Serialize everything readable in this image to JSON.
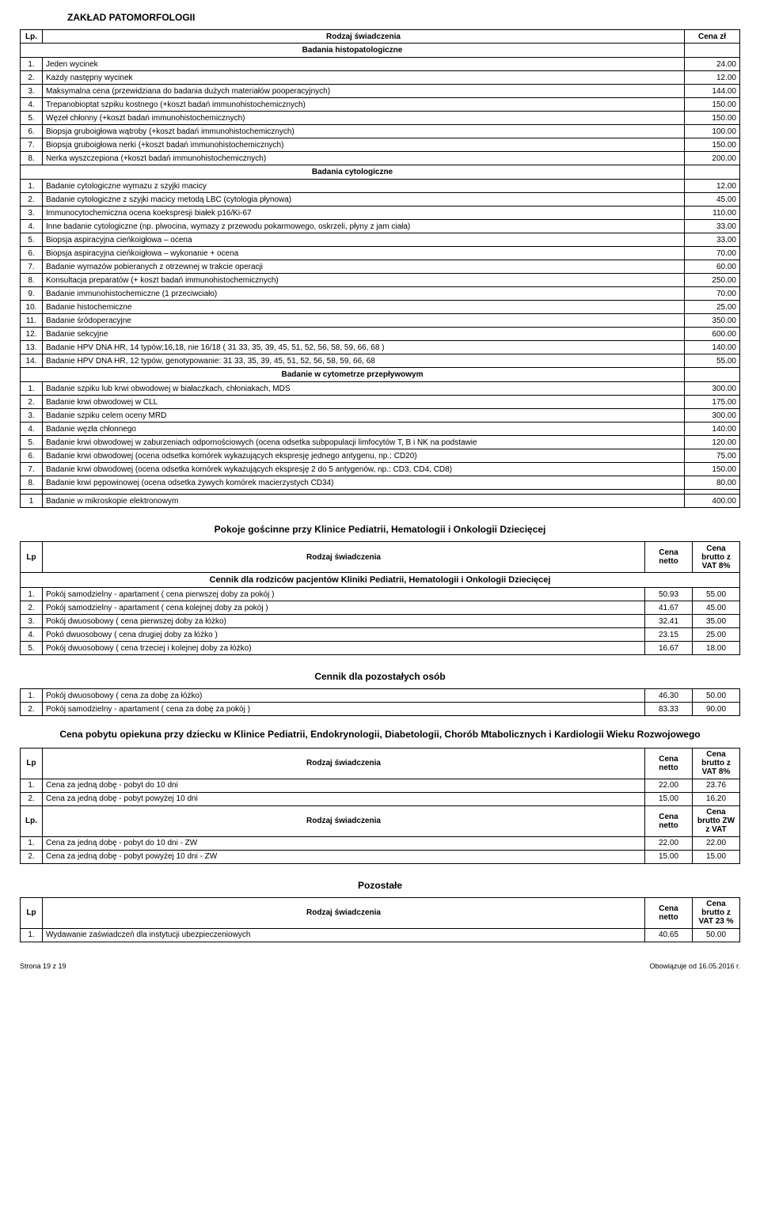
{
  "title1": "ZAKŁAD PATOMORFOLOGII",
  "hdr": {
    "lp": "Lp.",
    "lp2": "Lp",
    "rodzaj": "Rodzaj świadczenia",
    "cena": "Cena zł",
    "netto": "Cena netto",
    "brutto8": "Cena brutto z VAT 8%",
    "bruttoZW": "Cena brutto ZW z VAT",
    "brutto23": "Cena brutto z VAT 23 %"
  },
  "sec1": "Badania histopatologiczne",
  "t1": [
    {
      "n": "1.",
      "d": "Jeden wycinek",
      "p": "24.00"
    },
    {
      "n": "2.",
      "d": "Każdy następny wycinek",
      "p": "12.00"
    },
    {
      "n": "3.",
      "d": "Maksymalna cena (przewidziana do badania dużych materiałów pooperacyjnych)",
      "p": "144.00"
    },
    {
      "n": "4.",
      "d": "Trepanobioptat szpiku kostnego (+koszt badań immunohistochemicznych)",
      "p": "150.00"
    },
    {
      "n": "5.",
      "d": "Węzeł chłonny (+koszt badań immunohistochemicznych)",
      "p": "150.00"
    },
    {
      "n": "6.",
      "d": "Biopsja gruboigłowa wątroby (+koszt badań immunohistochemicznych)",
      "p": "100.00"
    },
    {
      "n": "7.",
      "d": "Biopsja gruboigłowa nerki (+koszt badań immunohistochemicznych)",
      "p": "150.00"
    },
    {
      "n": "8.",
      "d": "Nerka wyszczepiona (+koszt badań immunohistochemicznych)",
      "p": "200.00"
    }
  ],
  "sec2": "Badania cytologiczne",
  "t2": [
    {
      "n": "1.",
      "d": "Badanie cytologiczne wymazu z szyjki macicy",
      "p": "12.00"
    },
    {
      "n": "2.",
      "d": "Badanie cytologiczne z szyjki macicy metodą LBC (cytologia płynowa)",
      "p": "45.00"
    },
    {
      "n": "3.",
      "d": "Immunocytochemiczna ocena koekspresji białek p16/Ki-67",
      "p": "110.00"
    },
    {
      "n": "4.",
      "d": "Inne badanie cytologiczne (np. plwocina, wymazy z przewodu pokarmowego, oskrzeli, płyny z jam ciała)",
      "p": "33.00"
    },
    {
      "n": "5.",
      "d": "Biopsja aspiracyjna cieńkoigłowa – ocena",
      "p": "33.00"
    },
    {
      "n": "6.",
      "d": "Biopsja aspiracyjna cieńkoigłowa – wykonanie + ocena",
      "p": "70.00"
    },
    {
      "n": "7.",
      "d": "Badanie wymazów pobieranych z otrzewnej w trakcie operacji",
      "p": "60.00"
    },
    {
      "n": "8.",
      "d": "Konsultacja preparatów (+ koszt badań immunohistochemicznych)",
      "p": "250.00"
    },
    {
      "n": "9.",
      "d": "Badanie immunohistochemiczne (1 przeciwciało)",
      "p": "70.00"
    },
    {
      "n": "10.",
      "d": "Badanie histochemiczne",
      "p": "25.00"
    },
    {
      "n": "11.",
      "d": "Badanie śródoperacyjne",
      "p": "350.00"
    },
    {
      "n": "12.",
      "d": "Badanie sekcyjne",
      "p": "600.00"
    },
    {
      "n": "13.",
      "d": "Badanie HPV DNA HR, 14 typów:16,18, nie 16/18 ( 31 33, 35, 39, 45, 51, 52, 56, 58, 59, 66, 68 )",
      "p": "140.00"
    },
    {
      "n": "14.",
      "d": "Badanie HPV DNA HR, 12 typów, genotypowanie: 31 33, 35, 39, 45, 51, 52, 56, 58, 59, 66, 68",
      "p": "55.00"
    }
  ],
  "sec3": "Badanie w cytometrze przepływowym",
  "t3": [
    {
      "n": "1.",
      "d": "Badanie szpiku lub krwi obwodowej w białaczkach, chłoniakach, MDS",
      "p": "300.00"
    },
    {
      "n": "2.",
      "d": "Badanie krwi obwodowej w CLL",
      "p": "175.00"
    },
    {
      "n": "3.",
      "d": "Badanie szpiku celem oceny MRD",
      "p": "300.00"
    },
    {
      "n": "4.",
      "d": "Badanie węzła chłonnego",
      "p": "140.00"
    },
    {
      "n": "5.",
      "d": "Badanie krwi obwodowej w zaburzeniach odpornościowych (ocena odsetka subpopulacji limfocytów T, B i NK na podstawie",
      "p": "120.00"
    },
    {
      "n": "6.",
      "d": "Badanie krwi obwodowej (ocena odsetka komórek wykazujących ekspresję jednego antygenu, np.: CD20)",
      "p": "75.00"
    },
    {
      "n": "7.",
      "d": "Badanie krwi obwodowej (ocena odsetka komórek wykazujących ekspresję 2 do 5 antygenów, np.: CD3, CD4, CD8)",
      "p": "150.00"
    },
    {
      "n": "8.",
      "d": "Badanie krwi pępowinowej (ocena odsetka żywych komórek macierzystych CD34)",
      "p": "80.00"
    }
  ],
  "t3b": [
    {
      "n": "1",
      "d": "Badanie w mikroskopie elektronowym",
      "p": "400.00"
    }
  ],
  "title2": "Pokoje gościnne przy Klinice Pediatrii, Hematologii i Onkologii Dziecięcej",
  "cennikTitle1": "Cennik dla rodziców pacjentów Kliniki Pediatrii, Hematologii i Onkologii Dziecięcej",
  "t4": [
    {
      "n": "1.",
      "d": "Pokój samodzielny - apartament ( cena pierwszej doby za pokój )",
      "p1": "50.93",
      "p2": "55.00"
    },
    {
      "n": "2.",
      "d": "Pokój samodzielny - apartament ( cena kolejnej doby za pokój )",
      "p1": "41.67",
      "p2": "45.00"
    },
    {
      "n": "3.",
      "d": "Pokój dwuosobowy ( cena pierwszej doby za łóżko)",
      "p1": "32.41",
      "p2": "35.00"
    },
    {
      "n": "4.",
      "d": "Pokó dwuosobowy ( cena drugiej doby za łóżko )",
      "p1": "23.15",
      "p2": "25.00"
    },
    {
      "n": "5.",
      "d": "Pokój dwuosobowy (  cena trzeciej i kolejnej doby za łóżko)",
      "p1": "16.67",
      "p2": "18.00"
    }
  ],
  "cennikTitle2": "Cennik dla pozostałych osób",
  "t5": [
    {
      "n": "1.",
      "d": "Pokój dwuosobowy ( cena za dobę za łóżko)",
      "p1": "46.30",
      "p2": "50.00"
    },
    {
      "n": "2.",
      "d": "Pokój samodzielny - apartament ( cena za dobę za pokój )",
      "p1": "83.33",
      "p2": "90.00"
    }
  ],
  "title3": "Cena pobytu opiekuna przy dziecku w Klinice Pediatrii, Endokrynologii, Diabetologii, Chorób Mtabolicznych i Kardiologii Wieku Rozwojowego",
  "t6": [
    {
      "n": "1.",
      "d": "Cena za jedną dobę  - pobyt do 10 dni",
      "p1": "22.00",
      "p2": "23.76"
    },
    {
      "n": "2.",
      "d": "Cena za jedną dobę  - pobyt  powyżej 10 dni",
      "p1": "15.00",
      "p2": "16.20"
    }
  ],
  "t7": [
    {
      "n": "1.",
      "d": "Cena za jedną dobę  - pobyt do 10 dni   -   ZW",
      "p1": "22.00",
      "p2": "22.00"
    },
    {
      "n": "2.",
      "d": "Cena za jedną dobę  - pobyt  powyżej 10 dni   -   ZW",
      "p1": "15.00",
      "p2": "15.00"
    }
  ],
  "title4": "Pozostałe",
  "t8": [
    {
      "n": "1.",
      "d": "Wydawanie zaświadczeń dla instytucji ubezpieczeniowych",
      "p1": "40.65",
      "p2": "50.00"
    }
  ],
  "footer": {
    "page": "Strona 19 z 19",
    "date": "Obowiązuje od 16.05.2016 r."
  }
}
